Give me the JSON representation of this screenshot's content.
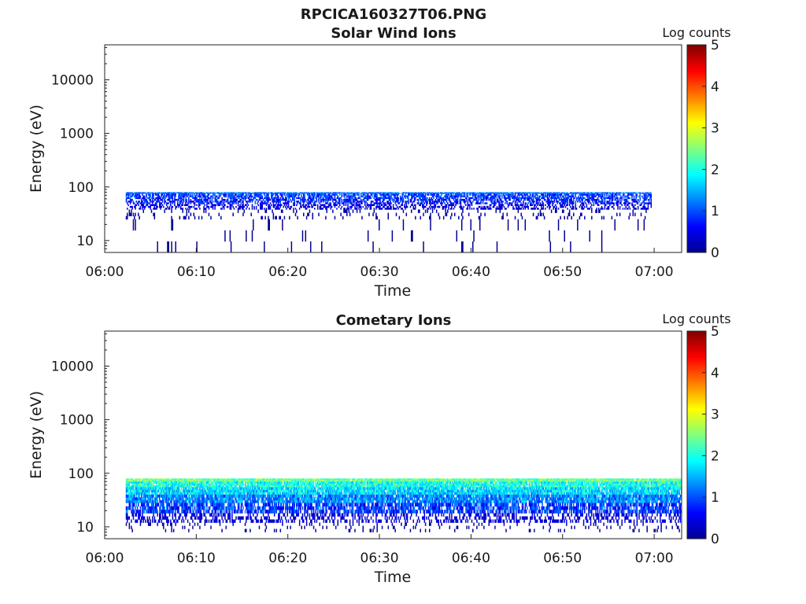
{
  "figure_title": "RPCICA160327T06.PNG",
  "colormap": [
    "#00008f",
    "#0000ff",
    "#0080ff",
    "#00ffff",
    "#80ff80",
    "#ffff00",
    "#ff8000",
    "#ff0000",
    "#800000"
  ],
  "chart_data": [
    {
      "type": "heatmap",
      "title": "Solar Wind Ions",
      "xlabel": "Time",
      "ylabel": "Energy (eV)",
      "y_scale": "log",
      "ylim": [
        6,
        45000
      ],
      "y_ticks": [
        10,
        100,
        1000,
        10000
      ],
      "y_tick_labels": [
        "10",
        "100",
        "1000",
        "10000"
      ],
      "x_range_minutes": [
        0,
        63
      ],
      "x_ticks_minutes": [
        0,
        10,
        20,
        30,
        40,
        50,
        60
      ],
      "x_tick_labels": [
        "06:00",
        "06:10",
        "06:20",
        "06:30",
        "06:40",
        "06:50",
        "07:00"
      ],
      "colorbar": {
        "label": "Log counts",
        "range": [
          0,
          5
        ],
        "ticks": [
          0,
          1,
          2,
          3,
          4,
          5
        ],
        "tick_labels": [
          "0",
          "1",
          "2",
          "3",
          "4",
          "5"
        ]
      },
      "data_start_minute": 2.3,
      "data_end_minute": 59.7,
      "band": [
        {
          "e_lo": 75,
          "e_hi": 80,
          "density": 0.85,
          "log_counts": 1.2,
          "spread": 0.4
        },
        {
          "e_lo": 60,
          "e_hi": 75,
          "density": 0.7,
          "log_counts": 0.9,
          "spread": 0.4
        },
        {
          "e_lo": 48,
          "e_hi": 60,
          "density": 0.6,
          "log_counts": 0.7,
          "spread": 0.4
        },
        {
          "e_lo": 38,
          "e_hi": 48,
          "density": 0.45,
          "log_counts": 0.4,
          "spread": 0.3
        },
        {
          "e_lo": 25,
          "e_hi": 38,
          "density": 0.12,
          "log_counts": 0.1,
          "spread": 0.1
        },
        {
          "e_lo": 6,
          "e_hi": 25,
          "density": 0.04,
          "log_counts": 0.0,
          "spread": 0.0
        }
      ]
    },
    {
      "type": "heatmap",
      "title": "Cometary Ions",
      "xlabel": "Time",
      "ylabel": "Energy (eV)",
      "y_scale": "log",
      "ylim": [
        6,
        45000
      ],
      "y_ticks": [
        10,
        100,
        1000,
        10000
      ],
      "y_tick_labels": [
        "10",
        "100",
        "1000",
        "10000"
      ],
      "x_range_minutes": [
        0,
        63
      ],
      "x_ticks_minutes": [
        0,
        10,
        20,
        30,
        40,
        50,
        60
      ],
      "x_tick_labels": [
        "06:00",
        "06:10",
        "06:20",
        "06:30",
        "06:40",
        "06:50",
        "07:00"
      ],
      "colorbar": {
        "label": "Log counts",
        "range": [
          0,
          5
        ],
        "ticks": [
          0,
          1,
          2,
          3,
          4,
          5
        ],
        "tick_labels": [
          "0",
          "1",
          "2",
          "3",
          "4",
          "5"
        ]
      },
      "data_start_minute": 2.3,
      "data_end_minute": 63,
      "band": [
        {
          "e_lo": 70,
          "e_hi": 80,
          "density": 1.0,
          "log_counts": 2.4,
          "spread": 0.5
        },
        {
          "e_lo": 55,
          "e_hi": 70,
          "density": 1.0,
          "log_counts": 2.0,
          "spread": 0.5
        },
        {
          "e_lo": 40,
          "e_hi": 55,
          "density": 0.98,
          "log_counts": 1.7,
          "spread": 0.5
        },
        {
          "e_lo": 28,
          "e_hi": 40,
          "density": 0.92,
          "log_counts": 1.3,
          "spread": 0.5
        },
        {
          "e_lo": 18,
          "e_hi": 28,
          "density": 0.75,
          "log_counts": 0.9,
          "spread": 0.5
        },
        {
          "e_lo": 12,
          "e_hi": 18,
          "density": 0.4,
          "log_counts": 0.4,
          "spread": 0.3
        },
        {
          "e_lo": 8,
          "e_hi": 12,
          "density": 0.12,
          "log_counts": 0.1,
          "spread": 0.1
        }
      ]
    }
  ]
}
